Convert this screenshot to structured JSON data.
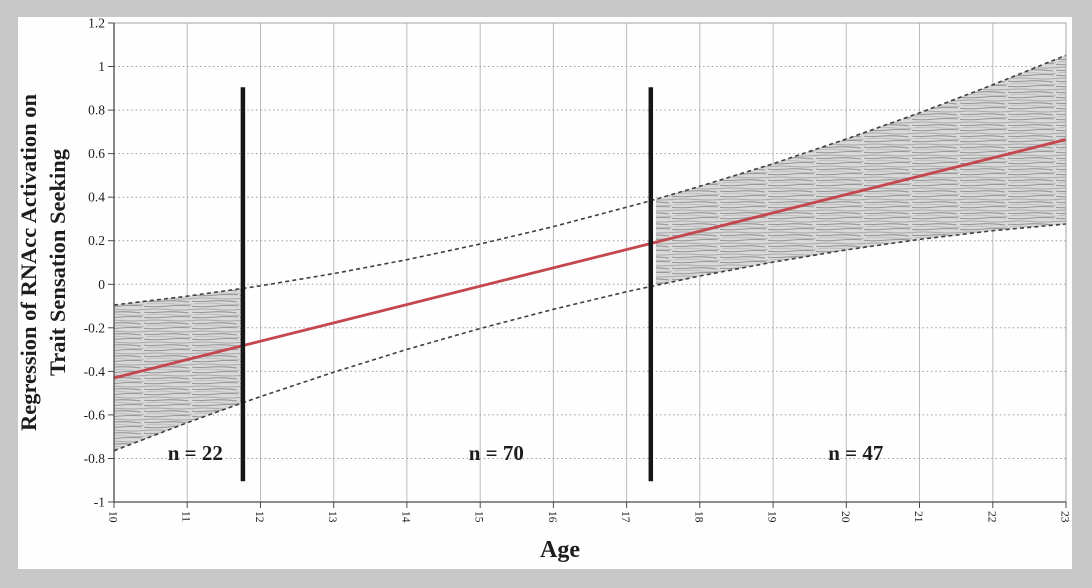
{
  "figure": {
    "description": "Johnson-Neyman regression plot with confidence band and significance regions"
  },
  "colors": {
    "page_background": "#c7c7c7",
    "plot_background": "#fefefe",
    "regression_red": "#c4464f",
    "ci_dash": "#3f3f3f",
    "boundary_black": "#161616",
    "grid_vertical": "#bcbcbc",
    "grid_horizontal": "#9c9c9c",
    "axis": "#4a4a4a",
    "frame": "#a3a3a3",
    "text": "#1d1d1d",
    "hatch_base": "#d9d9d9",
    "hatch_line_dark": "#969696",
    "hatch_line_mid": "#a9a9a9",
    "hatch_line_light": "#bdbdbd"
  },
  "chart_data": {
    "type": "line",
    "title": "",
    "xlabel": "Age",
    "ylabel": "Regression of RNAcc Activation on Trait Sensation Seeking",
    "ylabel_lines": [
      "Regression of RNAcc Activation on",
      "Trait Sensation Seeking"
    ],
    "xlim": [
      10,
      23
    ],
    "ylim": [
      -1,
      1.2
    ],
    "grid": {
      "vertical_style": "solid",
      "horizontal_style": "dotted"
    },
    "x_ticks": [
      10,
      11,
      12,
      13,
      14,
      15,
      16,
      17,
      18,
      19,
      20,
      21,
      22,
      23
    ],
    "x_tick_labels": [
      "10",
      "11",
      "12",
      "13",
      "14",
      "15",
      "16",
      "17",
      "18",
      "19",
      "20",
      "21",
      "22",
      "23"
    ],
    "y_ticks": [
      1.2,
      1,
      0.8,
      0.6,
      0.4,
      0.2,
      0,
      -0.2,
      -0.4,
      -0.6,
      -0.8,
      -1
    ],
    "y_tick_labels": [
      "1.2",
      "1",
      "0.8",
      "0.6",
      "0.4",
      "0.2",
      "0",
      "-0.2",
      "-0.4",
      "-0.6",
      "-0.8",
      "-1"
    ],
    "regression_line": {
      "label": "fitted regression of RNAcc activation on sensation seeking by age",
      "x": [
        10,
        23
      ],
      "y": [
        -0.43,
        0.665
      ]
    },
    "confidence_band": {
      "style": "dashed",
      "x": [
        10,
        11,
        11.76,
        12,
        13,
        14,
        15,
        16,
        17,
        17.33,
        18,
        19,
        20,
        21,
        22,
        23
      ],
      "upper": [
        -0.095,
        -0.055,
        -0.019,
        -0.007,
        0.049,
        0.113,
        0.185,
        0.265,
        0.354,
        0.384,
        0.45,
        0.554,
        0.667,
        0.787,
        0.916,
        1.052
      ],
      "lower": [
        -0.765,
        -0.636,
        -0.544,
        -0.516,
        -0.404,
        -0.299,
        -0.203,
        -0.115,
        -0.034,
        -0.01,
        0.038,
        0.102,
        0.158,
        0.206,
        0.246,
        0.277
      ]
    },
    "group_boundary_lines": [
      {
        "age": 11.76,
        "from": -0.905,
        "to": 0.905
      },
      {
        "age": 17.33,
        "from": -0.905,
        "to": 0.905
      }
    ],
    "shaded_significance_regions": [
      {
        "from_age": 10,
        "to_age": 11.76
      },
      {
        "from_age": 17.4,
        "to_age": 23
      }
    ],
    "annotations": [
      {
        "text": "n = 22",
        "age": 11.11,
        "value": -0.775
      },
      {
        "text": "n = 70",
        "age": 15.22,
        "value": -0.775
      },
      {
        "text": "n = 47",
        "age": 20.13,
        "value": -0.775
      }
    ]
  }
}
